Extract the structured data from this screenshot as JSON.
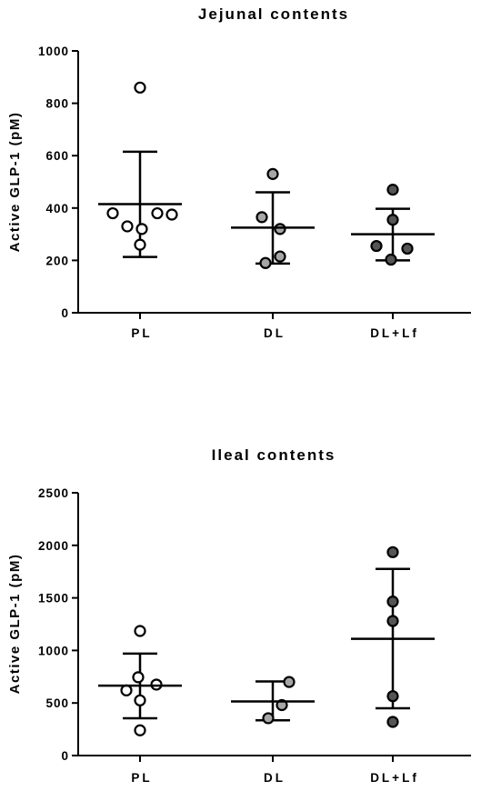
{
  "chart_data": [
    {
      "type": "scatter",
      "title": "Jejunal contents",
      "ylabel": "Active GLP-1 (pM)",
      "xlabel": "",
      "ylim": [
        0,
        1000
      ],
      "yticks": [
        "0",
        "200",
        "400",
        "600",
        "800",
        "1000"
      ],
      "categories": [
        "PL",
        "DL",
        "DL+Lf"
      ],
      "groups": [
        {
          "category": "PL",
          "fill": "#ffffff",
          "points": [
            860,
            380,
            330,
            320,
            380,
            375,
            260
          ],
          "mean": 415,
          "upper": 615,
          "lower": 213
        },
        {
          "category": "DL",
          "fill": "#a6a6a6",
          "points": [
            530,
            365,
            320,
            215,
            190
          ],
          "mean": 325,
          "upper": 460,
          "lower": 188
        },
        {
          "category": "DL+Lf",
          "fill": "#555555",
          "points": [
            470,
            355,
            255,
            245,
            203
          ],
          "mean": 300,
          "upper": 397,
          "lower": 200
        }
      ],
      "grid": false,
      "legend": "none"
    },
    {
      "type": "scatter",
      "title": "Ileal contents",
      "ylabel": "Active GLP-1 (pM)",
      "xlabel": "",
      "ylim": [
        0,
        2500
      ],
      "yticks": [
        "0",
        "500",
        "1000",
        "1500",
        "2000",
        "2500"
      ],
      "categories": [
        "PL",
        "DL",
        "DL+Lf"
      ],
      "groups": [
        {
          "category": "PL",
          "fill": "#ffffff",
          "points": [
            1185,
            745,
            620,
            675,
            525,
            240
          ],
          "mean": 665,
          "upper": 970,
          "lower": 355
        },
        {
          "category": "DL",
          "fill": "#a6a6a6",
          "points": [
            700,
            480,
            355
          ],
          "mean": 515,
          "upper": 705,
          "lower": 335
        },
        {
          "category": "DL+Lf",
          "fill": "#555555",
          "points": [
            1935,
            1465,
            1280,
            565,
            320
          ],
          "mean": 1110,
          "upper": 1775,
          "lower": 450
        }
      ],
      "grid": false,
      "legend": "none"
    }
  ]
}
